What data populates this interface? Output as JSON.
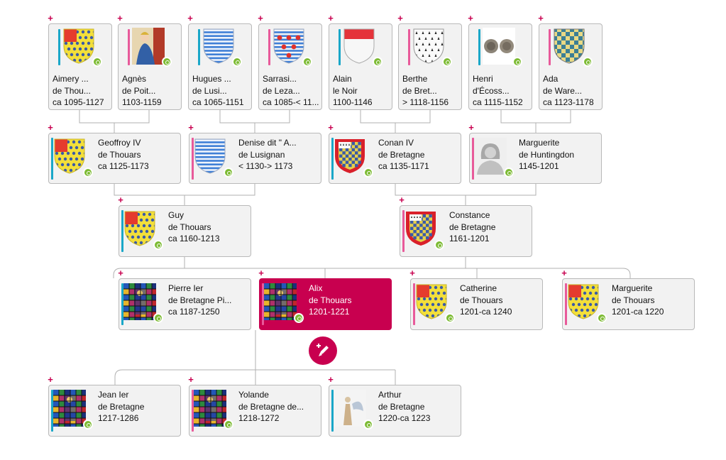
{
  "gen1": [
    {
      "name": "Aimery ...",
      "surname": "de Thou...",
      "dates": "ca 1095-1127",
      "sex": "m",
      "thumb": "arms-thouars-icon"
    },
    {
      "name": "Agnès",
      "surname": "de Poit...",
      "dates": "1103-1159",
      "sex": "f",
      "thumb": "portrait-miniature-icon"
    },
    {
      "name": "Hugues ...",
      "surname": "de Lusi...",
      "dates": "ca 1065-1151",
      "sex": "m",
      "thumb": "arms-lusignan-icon"
    },
    {
      "name": "Sarrasi...",
      "surname": "de Leza...",
      "dates": "ca 1085-< 11...",
      "sex": "f",
      "thumb": "arms-lezay-icon"
    },
    {
      "name": "Alain",
      "surname": "le Noir",
      "dates": "1100-1146",
      "sex": "m",
      "thumb": "arms-red-white-icon"
    },
    {
      "name": "Berthe",
      "surname": "de Bret...",
      "dates": "> 1118-1156",
      "sex": "f",
      "thumb": "arms-ermine-icon"
    },
    {
      "name": "Henri",
      "surname": "d'Écoss...",
      "dates": "ca 1115-1152",
      "sex": "m",
      "thumb": "coins-icon"
    },
    {
      "name": "Ada",
      "surname": "de Ware...",
      "dates": "ca 1123-1178",
      "sex": "f",
      "thumb": "arms-checky-icon"
    }
  ],
  "gen2": [
    {
      "name": "Geoffroy IV",
      "surname": "de Thouars",
      "dates": "ca 1125-1173",
      "sex": "m",
      "thumb": "arms-thouars-icon"
    },
    {
      "name": "Denise dit \" A...",
      "surname": "de Lusignan",
      "dates": "< 1130-> 1173",
      "sex": "f",
      "thumb": "arms-lusignan-icon"
    },
    {
      "name": "Conan IV",
      "surname": "de Bretagne",
      "dates": "ca 1135-1171",
      "sex": "m",
      "thumb": "arms-brittany-icon"
    },
    {
      "name": "Marguerite",
      "surname": "de Huntingdon",
      "dates": "1145-1201",
      "sex": "f",
      "thumb": "silhouette-woman-icon"
    }
  ],
  "gen3": [
    {
      "name": "Guy",
      "surname": "de Thouars",
      "dates": "ca 1160-1213",
      "sex": "m",
      "thumb": "arms-thouars-icon"
    },
    {
      "name": "Constance",
      "surname": "de Bretagne",
      "dates": "1161-1201",
      "sex": "f",
      "thumb": "arms-brittany-icon"
    }
  ],
  "gen4": [
    {
      "name": "Pierre Ier",
      "surname": "de Bretagne Pi...",
      "dates": "ca 1187-1250",
      "sex": "m",
      "thumb": "stained-glass-icon"
    },
    {
      "name": "Alix",
      "surname": "de Thouars",
      "dates": "1201-1221",
      "sex": "f",
      "thumb": "stained-glass-icon",
      "selected": true
    },
    {
      "name": "Catherine",
      "surname": "de Thouars",
      "dates": "1201-ca 1240",
      "sex": "f",
      "thumb": "arms-thouars-icon"
    },
    {
      "name": "Marguerite",
      "surname": "de Thouars",
      "dates": "1201-ca 1220",
      "sex": "f",
      "thumb": "arms-thouars-icon"
    }
  ],
  "gen5": [
    {
      "name": "Jean Ier",
      "surname": "de Bretagne",
      "dates": "1217-1286",
      "sex": "m",
      "thumb": "stained-glass-icon"
    },
    {
      "name": "Yolande",
      "surname": "de Bretagne de...",
      "dates": "1218-1272",
      "sex": "f",
      "thumb": "stained-glass-icon"
    },
    {
      "name": "Arthur",
      "surname": "de Bretagne",
      "dates": "1220-ca 1223",
      "sex": "m",
      "thumb": "angel-figurine-icon"
    }
  ],
  "controls": {
    "expand_symbol": "+",
    "edit_icon": "edit-pencil-icon"
  },
  "colors": {
    "accent": "#c8004f",
    "male": "#1aa7c8",
    "female": "#e85a9a",
    "badge": "#7dbb34",
    "card_bg": "#f2f2f2"
  }
}
